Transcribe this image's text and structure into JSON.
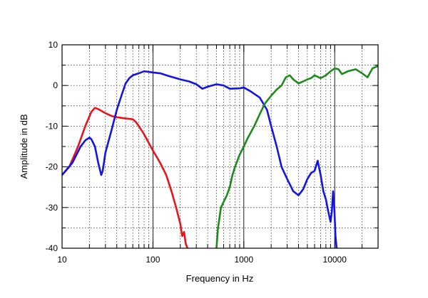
{
  "chart_data": {
    "type": "line",
    "title": "",
    "xlabel": "Frequency in Hz",
    "ylabel": "Amplitude in dB",
    "x_scale": "log",
    "xlim": [
      10,
      30000
    ],
    "ylim": [
      -40,
      10
    ],
    "x_ticks": [
      10,
      100,
      1000,
      10000
    ],
    "x_tick_labels": [
      "10",
      "100",
      "1000",
      "10000"
    ],
    "y_ticks": [
      10,
      0,
      -10,
      -20,
      -30,
      -40
    ],
    "y_tick_labels": [
      "10",
      "0",
      "-10",
      "-20",
      "-30",
      "-40"
    ],
    "grid": true,
    "legend": "none",
    "series": [
      {
        "color": "#e8141c",
        "points": [
          [
            10,
            -22
          ],
          [
            12,
            -20
          ],
          [
            15,
            -15
          ],
          [
            18,
            -10
          ],
          [
            21,
            -6.5
          ],
          [
            23,
            -5.5
          ],
          [
            25,
            -5.8
          ],
          [
            30,
            -6.8
          ],
          [
            35,
            -7.5
          ],
          [
            40,
            -7.8
          ],
          [
            50,
            -8.1
          ],
          [
            60,
            -8.3
          ],
          [
            65,
            -9
          ],
          [
            70,
            -10
          ],
          [
            80,
            -12
          ],
          [
            100,
            -16
          ],
          [
            120,
            -19
          ],
          [
            140,
            -22
          ],
          [
            160,
            -26
          ],
          [
            180,
            -30
          ],
          [
            200,
            -34
          ],
          [
            210,
            -37
          ],
          [
            220,
            -36
          ],
          [
            230,
            -39
          ],
          [
            240,
            -40
          ]
        ]
      },
      {
        "color": "#1414e6",
        "points": [
          [
            10,
            -22
          ],
          [
            13,
            -19
          ],
          [
            16,
            -15
          ],
          [
            18,
            -13.5
          ],
          [
            20,
            -12.8
          ],
          [
            21,
            -13.2
          ],
          [
            23,
            -15
          ],
          [
            25,
            -19
          ],
          [
            27,
            -22
          ],
          [
            28,
            -21
          ],
          [
            30,
            -16.5
          ],
          [
            35,
            -11
          ],
          [
            40,
            -6
          ],
          [
            45,
            -2.5
          ],
          [
            50,
            0.5
          ],
          [
            55,
            1.8
          ],
          [
            60,
            2.5
          ],
          [
            70,
            3
          ],
          [
            80,
            3.5
          ],
          [
            100,
            3.2
          ],
          [
            120,
            3
          ],
          [
            150,
            2.3
          ],
          [
            200,
            1.5
          ],
          [
            250,
            1
          ],
          [
            300,
            0.3
          ],
          [
            350,
            -0.8
          ],
          [
            400,
            -0.3
          ],
          [
            500,
            0.3
          ],
          [
            600,
            0
          ],
          [
            700,
            -0.8
          ],
          [
            900,
            -0.7
          ],
          [
            1000,
            -0.5
          ],
          [
            1200,
            -1.5
          ],
          [
            1500,
            -3
          ],
          [
            1800,
            -6
          ],
          [
            2000,
            -10
          ],
          [
            2300,
            -15
          ],
          [
            2600,
            -20
          ],
          [
            3000,
            -23
          ],
          [
            3500,
            -26
          ],
          [
            4000,
            -27
          ],
          [
            4500,
            -25.5
          ],
          [
            5000,
            -23
          ],
          [
            5500,
            -21.5
          ],
          [
            6000,
            -21
          ],
          [
            6500,
            -18.5
          ],
          [
            7000,
            -22
          ],
          [
            7500,
            -26
          ],
          [
            8000,
            -28
          ],
          [
            8500,
            -31
          ],
          [
            9000,
            -33.5
          ],
          [
            9300,
            -31
          ],
          [
            9600,
            -26
          ],
          [
            9900,
            -30
          ],
          [
            10200,
            -37
          ],
          [
            10500,
            -40
          ]
        ]
      },
      {
        "color": "#1e8a1e",
        "points": [
          [
            500,
            -40
          ],
          [
            520,
            -35
          ],
          [
            560,
            -30
          ],
          [
            650,
            -27
          ],
          [
            700,
            -25
          ],
          [
            750,
            -22
          ],
          [
            800,
            -20
          ],
          [
            900,
            -17
          ],
          [
            1000,
            -15
          ],
          [
            1100,
            -13
          ],
          [
            1300,
            -10
          ],
          [
            1500,
            -7
          ],
          [
            1700,
            -4.5
          ],
          [
            2000,
            -2.5
          ],
          [
            2300,
            -1
          ],
          [
            2600,
            0
          ],
          [
            2900,
            2
          ],
          [
            3200,
            2.5
          ],
          [
            3500,
            1.5
          ],
          [
            4000,
            0.5
          ],
          [
            4500,
            1
          ],
          [
            5000,
            1.5
          ],
          [
            5500,
            1.8
          ],
          [
            6000,
            2.5
          ],
          [
            7000,
            1.8
          ],
          [
            8000,
            2.5
          ],
          [
            9000,
            3.5
          ],
          [
            10000,
            4.2
          ],
          [
            11000,
            4
          ],
          [
            12000,
            2.8
          ],
          [
            14000,
            3.5
          ],
          [
            17000,
            4
          ],
          [
            20000,
            3
          ],
          [
            23000,
            2
          ],
          [
            26000,
            4.2
          ],
          [
            30000,
            4.8
          ]
        ]
      }
    ]
  }
}
